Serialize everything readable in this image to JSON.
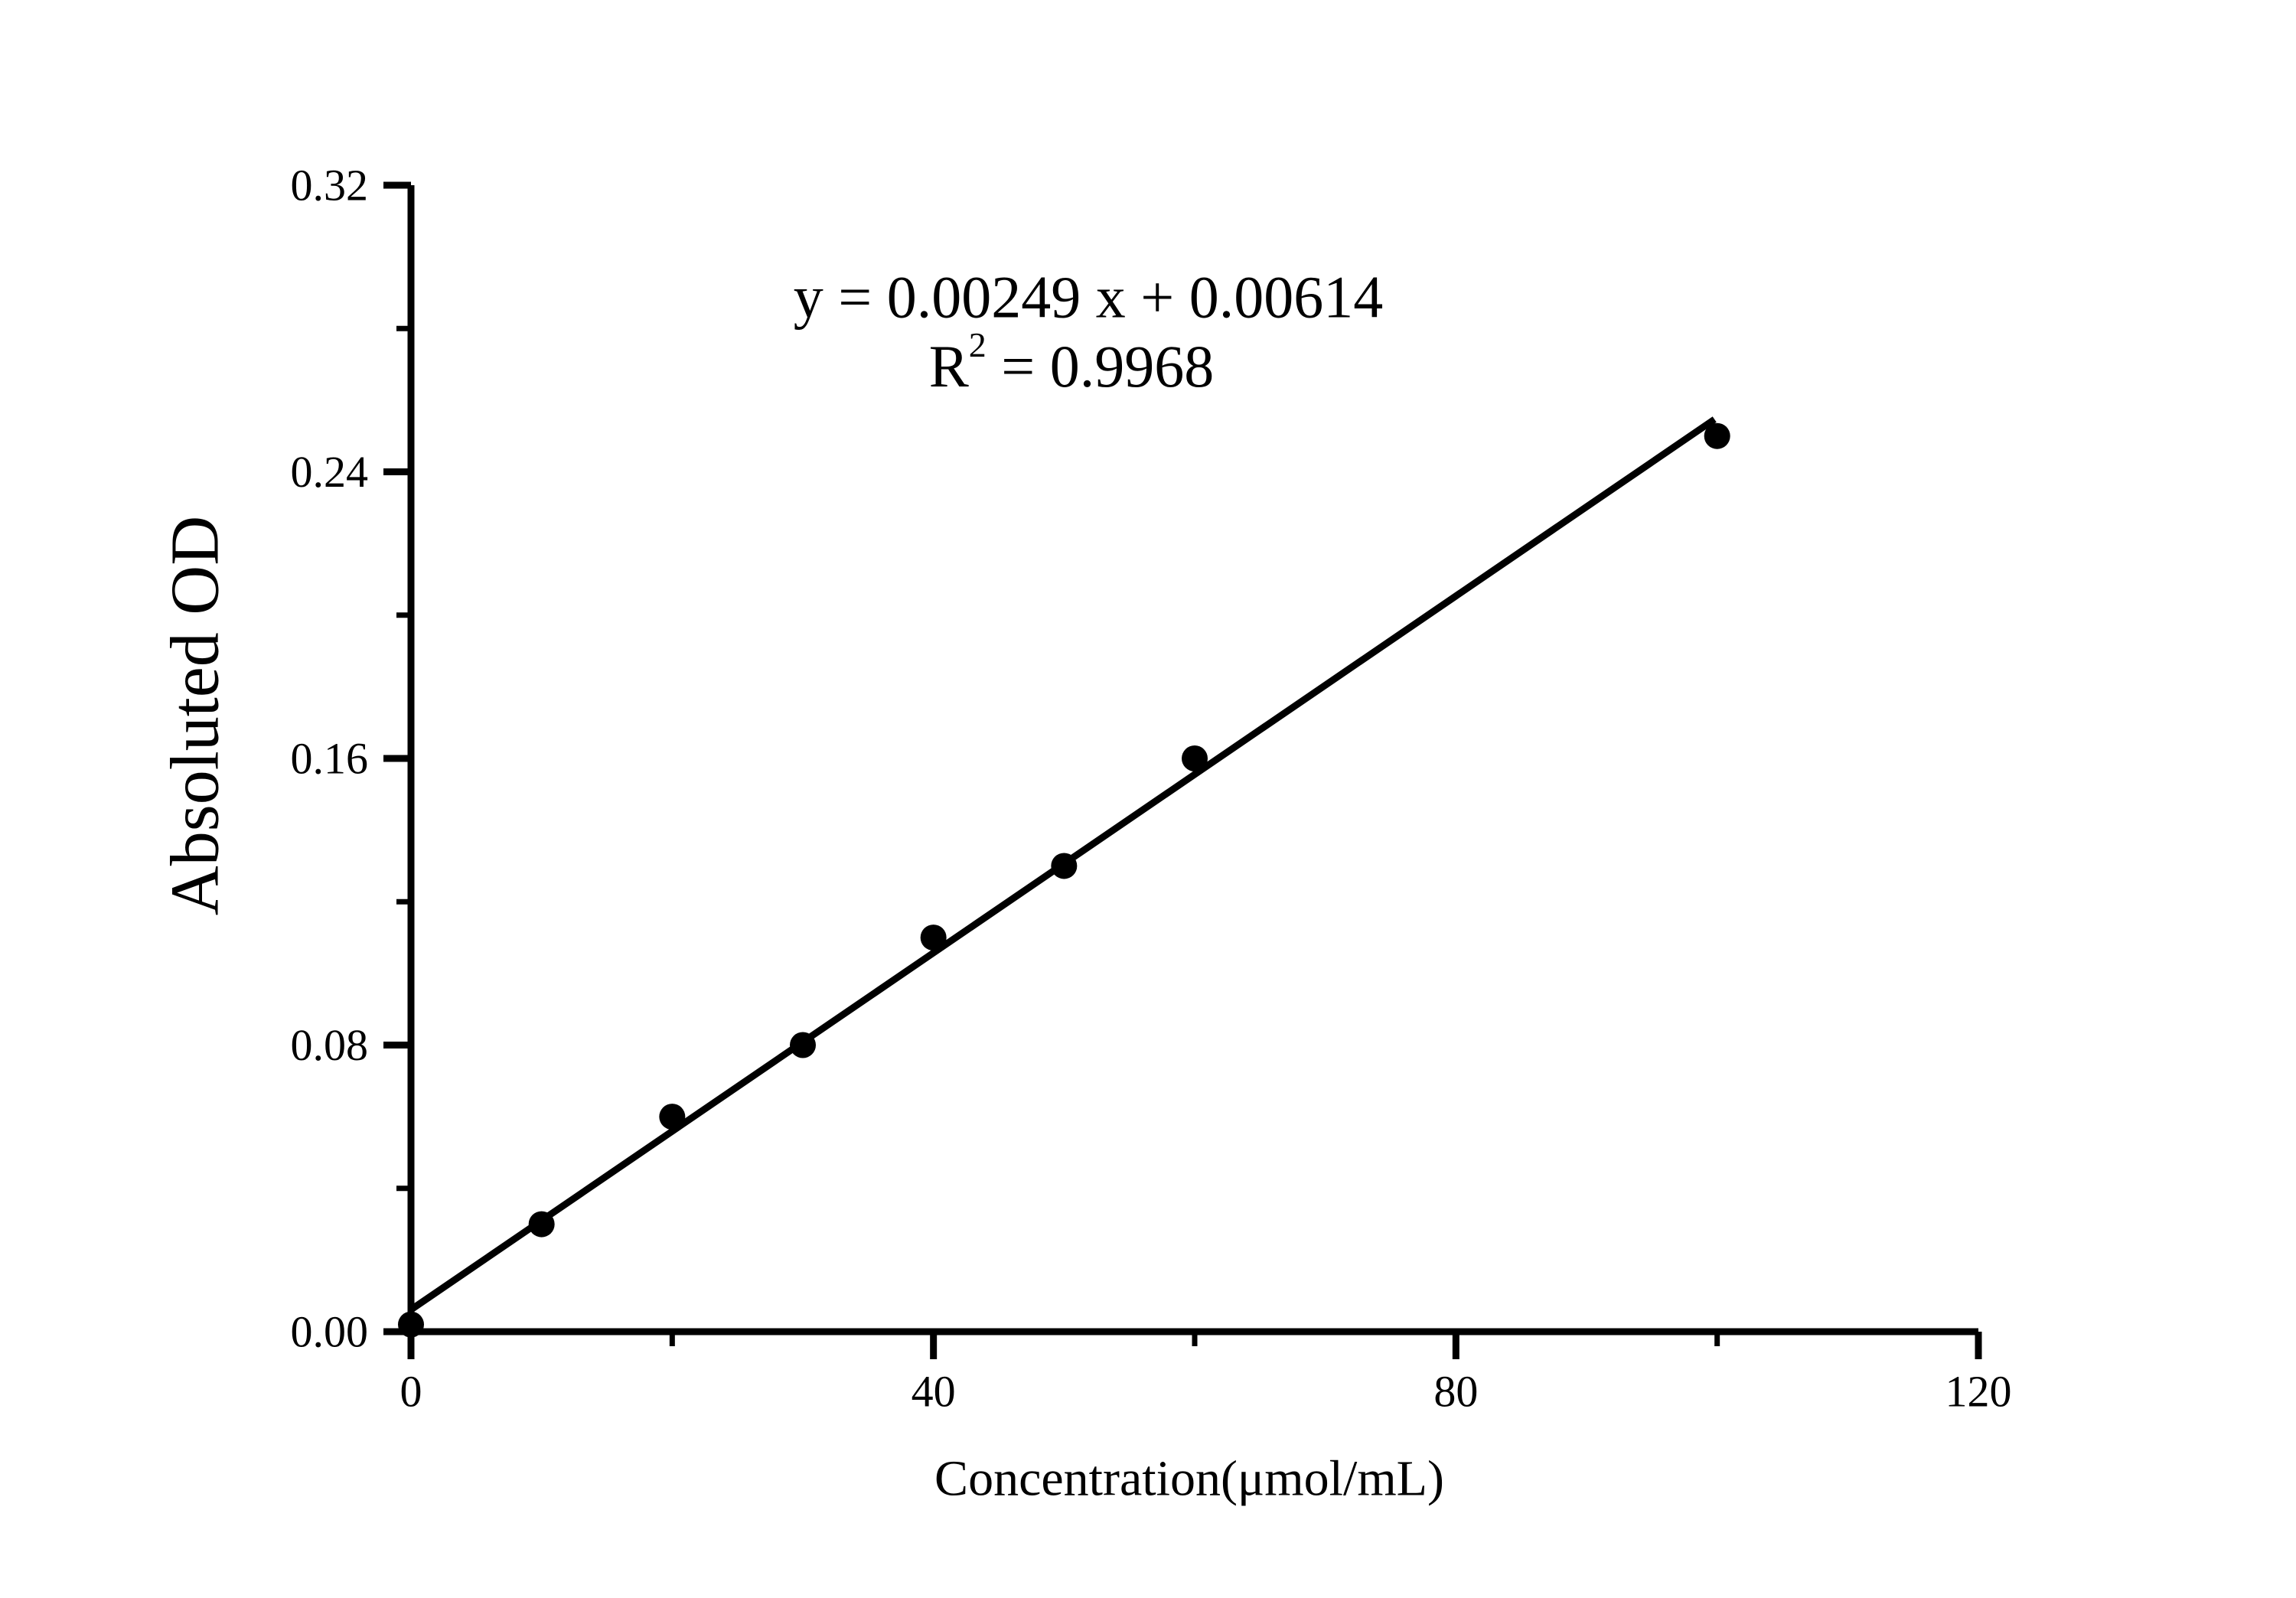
{
  "page": {
    "background": "#ffffff",
    "ink_color": "#000000"
  },
  "chart_data": {
    "type": "scatter",
    "title": "",
    "xlabel": "Concentration(μmol/mL)",
    "ylabel": "Absoluted OD",
    "x": [
      0,
      10,
      20,
      30,
      40,
      50,
      60,
      100
    ],
    "y": [
      0.002,
      0.03,
      0.06,
      0.08,
      0.11,
      0.13,
      0.16,
      0.25
    ],
    "fit": {
      "equation_label": "y = 0.00249 x + 0.00614",
      "slope": 0.00249,
      "intercept": 0.00614,
      "r_squared": 0.9968,
      "x_start": 0,
      "x_end": 99.8
    },
    "r2_label": {
      "base": "R",
      "exponent": "2",
      "rest": " = 0.9968"
    },
    "x_axis": {
      "min": 0,
      "max": 120,
      "major_ticks": [
        0,
        40,
        80,
        120
      ],
      "tick_labels": [
        "0",
        "40",
        "80",
        "120"
      ],
      "minor_ticks": [
        20,
        60,
        100
      ]
    },
    "y_axis": {
      "min": 0,
      "max": 0.32,
      "major_ticks": [
        0,
        0.08,
        0.16,
        0.24,
        0.32
      ],
      "tick_labels": [
        "0.00",
        "0.08",
        "0.16",
        "0.24",
        "0.32"
      ],
      "minor_ticks": [
        0.04,
        0.12,
        0.2,
        0.28
      ]
    },
    "grid": false,
    "legend": false,
    "marker_color": "#000000",
    "line_color": "#000000"
  }
}
